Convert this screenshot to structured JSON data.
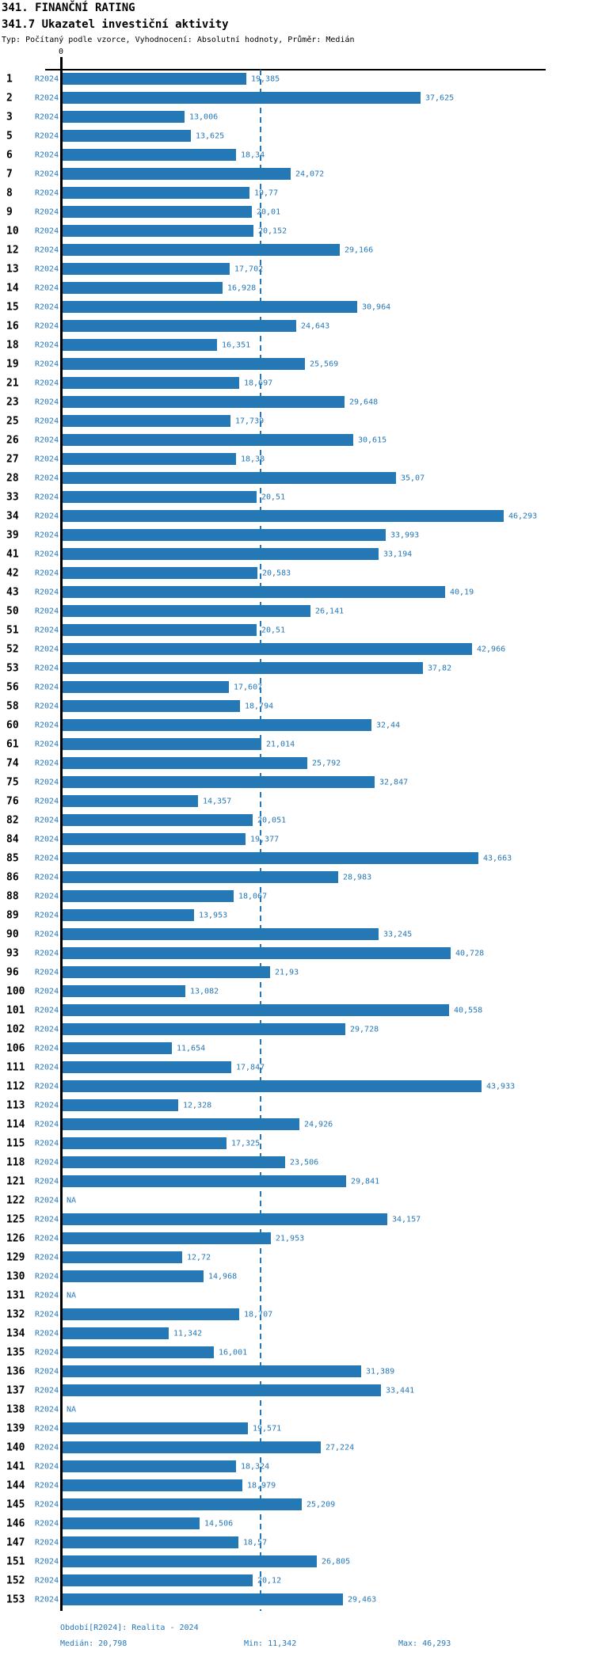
{
  "header": {
    "title": "341. FINANČNÍ RATING",
    "subtitle": "341.7 Ukazatel investiční aktivity",
    "params_line": "Typ: Počítaný podle vzorce, Vyhodnocení: Absolutní hodnoty, Průměr: Medián"
  },
  "footer": {
    "period": "Období[R2024]: Realita - 2024",
    "median": "Medián: 20,798",
    "min": "Min: 11,342",
    "max": "Max: 46,293"
  },
  "chart_data": {
    "type": "bar",
    "orientation": "horizontal",
    "title": "341. FINANČNÍ RATING",
    "subtitle": "341.7 Ukazatel investiční aktivity",
    "series_label": "R2024",
    "value_format": "czech-decimal-comma",
    "na_text": "NA",
    "axis": {
      "zero_label": "0",
      "median_value": 20.798,
      "min_value": 11.342,
      "max_value": 46.293,
      "xlim": [
        0,
        50
      ],
      "grid": false
    },
    "colors": {
      "bar": "#2478b5",
      "text_blue": "#2577b8",
      "axis": "#000000",
      "row_number": "#000000"
    },
    "rows": [
      {
        "id": "1",
        "label": "19,385",
        "value": 19.385
      },
      {
        "id": "2",
        "label": "37,625",
        "value": 37.625
      },
      {
        "id": "3",
        "label": "13,006",
        "value": 13.006
      },
      {
        "id": "5",
        "label": "13,625",
        "value": 13.625
      },
      {
        "id": "6",
        "label": "18,34",
        "value": 18.34
      },
      {
        "id": "7",
        "label": "24,072",
        "value": 24.072
      },
      {
        "id": "8",
        "label": "19,77",
        "value": 19.77
      },
      {
        "id": "9",
        "label": "20,01",
        "value": 20.01
      },
      {
        "id": "10",
        "label": "20,152",
        "value": 20.152
      },
      {
        "id": "12",
        "label": "29,166",
        "value": 29.166
      },
      {
        "id": "13",
        "label": "17,702",
        "value": 17.702
      },
      {
        "id": "14",
        "label": "16,928",
        "value": 16.928
      },
      {
        "id": "15",
        "label": "30,964",
        "value": 30.964
      },
      {
        "id": "16",
        "label": "24,643",
        "value": 24.643
      },
      {
        "id": "18",
        "label": "16,351",
        "value": 16.351
      },
      {
        "id": "19",
        "label": "25,569",
        "value": 25.569
      },
      {
        "id": "21",
        "label": "18,697",
        "value": 18.697
      },
      {
        "id": "23",
        "label": "29,648",
        "value": 29.648
      },
      {
        "id": "25",
        "label": "17,739",
        "value": 17.739
      },
      {
        "id": "26",
        "label": "30,615",
        "value": 30.615
      },
      {
        "id": "27",
        "label": "18,38",
        "value": 18.38
      },
      {
        "id": "28",
        "label": "35,07",
        "value": 35.07
      },
      {
        "id": "33",
        "label": "20,51",
        "value": 20.51
      },
      {
        "id": "34",
        "label": "46,293",
        "value": 46.293
      },
      {
        "id": "39",
        "label": "33,993",
        "value": 33.993
      },
      {
        "id": "41",
        "label": "33,194",
        "value": 33.194
      },
      {
        "id": "42",
        "label": "20,583",
        "value": 20.583
      },
      {
        "id": "43",
        "label": "40,19",
        "value": 40.19
      },
      {
        "id": "50",
        "label": "26,141",
        "value": 26.141
      },
      {
        "id": "51",
        "label": "20,51",
        "value": 20.51
      },
      {
        "id": "52",
        "label": "42,966",
        "value": 42.966
      },
      {
        "id": "53",
        "label": "37,82",
        "value": 37.82
      },
      {
        "id": "56",
        "label": "17,607",
        "value": 17.607
      },
      {
        "id": "58",
        "label": "18,794",
        "value": 18.794
      },
      {
        "id": "60",
        "label": "32,44",
        "value": 32.44
      },
      {
        "id": "61",
        "label": "21,014",
        "value": 21.014
      },
      {
        "id": "74",
        "label": "25,792",
        "value": 25.792
      },
      {
        "id": "75",
        "label": "32,847",
        "value": 32.847
      },
      {
        "id": "76",
        "label": "14,357",
        "value": 14.357
      },
      {
        "id": "82",
        "label": "20,051",
        "value": 20.051
      },
      {
        "id": "84",
        "label": "19,377",
        "value": 19.377
      },
      {
        "id": "85",
        "label": "43,663",
        "value": 43.663
      },
      {
        "id": "86",
        "label": "28,983",
        "value": 28.983
      },
      {
        "id": "88",
        "label": "18,067",
        "value": 18.067
      },
      {
        "id": "89",
        "label": "13,953",
        "value": 13.953
      },
      {
        "id": "90",
        "label": "33,245",
        "value": 33.245
      },
      {
        "id": "93",
        "label": "40,728",
        "value": 40.728
      },
      {
        "id": "96",
        "label": "21,93",
        "value": 21.93
      },
      {
        "id": "100",
        "label": "13,082",
        "value": 13.082
      },
      {
        "id": "101",
        "label": "40,558",
        "value": 40.558
      },
      {
        "id": "102",
        "label": "29,728",
        "value": 29.728
      },
      {
        "id": "106",
        "label": "11,654",
        "value": 11.654
      },
      {
        "id": "111",
        "label": "17,847",
        "value": 17.847
      },
      {
        "id": "112",
        "label": "43,933",
        "value": 43.933
      },
      {
        "id": "113",
        "label": "12,328",
        "value": 12.328
      },
      {
        "id": "114",
        "label": "24,926",
        "value": 24.926
      },
      {
        "id": "115",
        "label": "17,325",
        "value": 17.325
      },
      {
        "id": "118",
        "label": "23,506",
        "value": 23.506
      },
      {
        "id": "121",
        "label": "29,841",
        "value": 29.841
      },
      {
        "id": "122",
        "label": "NA",
        "value": null
      },
      {
        "id": "125",
        "label": "34,157",
        "value": 34.157
      },
      {
        "id": "126",
        "label": "21,953",
        "value": 21.953
      },
      {
        "id": "129",
        "label": "12,72",
        "value": 12.72
      },
      {
        "id": "130",
        "label": "14,968",
        "value": 14.968
      },
      {
        "id": "131",
        "label": "NA",
        "value": null
      },
      {
        "id": "132",
        "label": "18,707",
        "value": 18.707
      },
      {
        "id": "134",
        "label": "11,342",
        "value": 11.342
      },
      {
        "id": "135",
        "label": "16,001",
        "value": 16.001
      },
      {
        "id": "136",
        "label": "31,389",
        "value": 31.389
      },
      {
        "id": "137",
        "label": "33,441",
        "value": 33.441
      },
      {
        "id": "138",
        "label": "NA",
        "value": null
      },
      {
        "id": "139",
        "label": "19,571",
        "value": 19.571
      },
      {
        "id": "140",
        "label": "27,224",
        "value": 27.224
      },
      {
        "id": "141",
        "label": "18,324",
        "value": 18.324
      },
      {
        "id": "144",
        "label": "18,979",
        "value": 18.979
      },
      {
        "id": "145",
        "label": "25,209",
        "value": 25.209
      },
      {
        "id": "146",
        "label": "14,506",
        "value": 14.506
      },
      {
        "id": "147",
        "label": "18,57",
        "value": 18.57
      },
      {
        "id": "151",
        "label": "26,805",
        "value": 26.805
      },
      {
        "id": "152",
        "label": "20,12",
        "value": 20.12
      },
      {
        "id": "153",
        "label": "29,463",
        "value": 29.463
      }
    ]
  }
}
